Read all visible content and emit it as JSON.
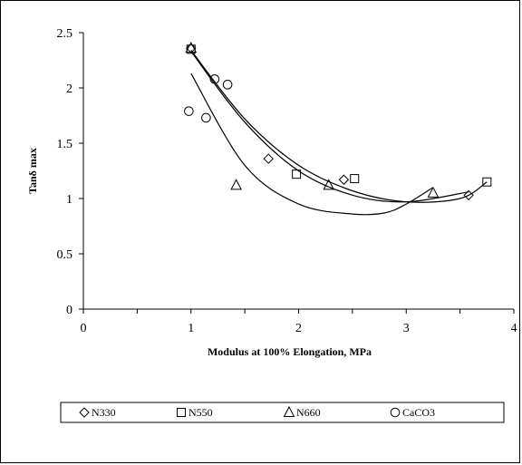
{
  "chart_data": {
    "type": "scatter",
    "title": "",
    "xlabel": "Modulus at 100% Elongation, MPa",
    "ylabel": "Tanδ max",
    "xlim": [
      0,
      4
    ],
    "ylim": [
      0,
      2.5
    ],
    "xticks": [
      "0",
      "1",
      "2",
      "3",
      "4"
    ],
    "yticks": [
      "0",
      "0.5",
      "1",
      "1.5",
      "2",
      "2.5"
    ],
    "grid": false,
    "legend_position": "bottom",
    "series": [
      {
        "name": "N330",
        "marker": "diamond",
        "x": [
          1.0,
          1.72,
          2.42,
          3.58
        ],
        "y": [
          2.36,
          1.36,
          1.17,
          1.03
        ]
      },
      {
        "name": "N550",
        "marker": "square",
        "x": [
          1.0,
          1.98,
          2.52,
          3.75
        ],
        "y": [
          2.35,
          1.22,
          1.18,
          1.15
        ]
      },
      {
        "name": "N660",
        "marker": "triangle",
        "x": [
          1.0,
          1.42,
          2.28,
          3.25
        ],
        "y": [
          2.36,
          1.12,
          1.12,
          1.05
        ]
      },
      {
        "name": "CaCO3",
        "marker": "circle",
        "x": [
          0.98,
          1.14,
          1.22,
          1.34
        ],
        "y": [
          1.79,
          1.73,
          2.08,
          2.03
        ]
      }
    ],
    "trendlines": [
      {
        "series": "N330",
        "x": [
          1.0,
          1.5,
          2.0,
          2.5,
          3.0,
          3.58
        ],
        "y": [
          2.33,
          1.69,
          1.25,
          1.03,
          0.97,
          1.06
        ]
      },
      {
        "series": "N550",
        "x": [
          1.0,
          1.5,
          2.0,
          2.5,
          3.0,
          3.5,
          3.75
        ],
        "y": [
          2.34,
          1.72,
          1.3,
          1.07,
          0.97,
          1.0,
          1.15
        ]
      },
      {
        "series": "N660",
        "x": [
          1.0,
          1.5,
          2.0,
          2.5,
          2.8,
          3.0,
          3.25
        ],
        "y": [
          2.13,
          1.3,
          0.95,
          0.86,
          0.87,
          0.95,
          1.1
        ]
      }
    ]
  }
}
